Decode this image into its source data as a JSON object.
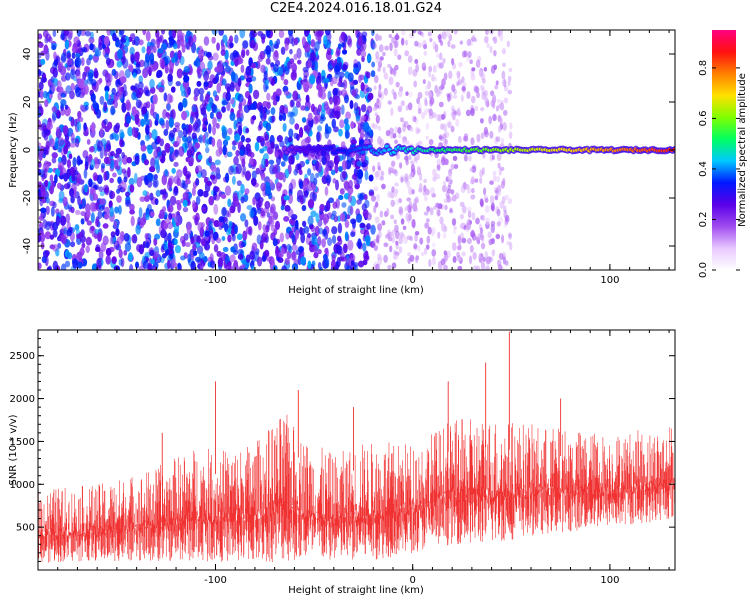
{
  "figure": {
    "title": "C2E4.2024.016.18.01.G24"
  },
  "chart_data": [
    {
      "type": "heatmap",
      "xlabel": "Height of straight line (km)",
      "ylabel": "Frequency (Hz)",
      "xlim": [
        -190,
        133
      ],
      "ylim": [
        -50,
        50
      ],
      "xticks": [
        -100,
        0,
        100
      ],
      "yticks": [
        -40,
        -20,
        0,
        20,
        40
      ],
      "colorbar": {
        "label": "Normalized spectral amplitude",
        "range": [
          0,
          0.95
        ],
        "ticks": [
          0.0,
          0.2,
          0.4,
          0.6,
          0.8
        ],
        "tick_labels": [
          "0.0",
          "0.2",
          "0.4",
          "0.6",
          "0.8"
        ],
        "colors": [
          "#ffffff",
          "#e8c8ff",
          "#a04cf0",
          "#5a00e8",
          "#0018ff",
          "#00c8ff",
          "#00ff60",
          "#80ff00",
          "#ffe000",
          "#ff8000",
          "#ff1010",
          "#ff0080"
        ]
      },
      "features": [
        {
          "description": "scattered low-amplitude blobs",
          "x_range": [
            -190,
            -20
          ],
          "freq_range": [
            -50,
            50
          ],
          "amplitude": 0.05
        },
        {
          "description": "sparse faint blobs",
          "x_range": [
            -20,
            50
          ],
          "freq_range": [
            -50,
            50
          ],
          "amplitude": 0.02
        },
        {
          "description": "signal line",
          "x_range": [
            -65,
            133
          ],
          "freq": 0,
          "amplitude_start": 0.2,
          "amplitude_end": 0.85
        }
      ]
    },
    {
      "type": "area",
      "xlabel": "Height of straight line (km)",
      "ylabel": "SNR (10 * v/v)",
      "xlim": [
        -190,
        133
      ],
      "ylim": [
        0,
        2800
      ],
      "xticks": [
        -100,
        0,
        100
      ],
      "yticks": [
        500,
        1000,
        1500,
        2000,
        2500
      ],
      "color": "#f03232",
      "series": [
        {
          "x": [
            -190,
            -160,
            -130,
            -110,
            -100,
            -80,
            -65,
            -55,
            -40,
            -25,
            -10,
            0,
            20,
            40,
            60,
            80,
            100,
            120,
            133
          ],
          "lower": [
            80,
            100,
            100,
            100,
            100,
            80,
            100,
            100,
            100,
            100,
            150,
            200,
            300,
            300,
            400,
            450,
            500,
            550,
            600
          ],
          "upper": [
            950,
            1000,
            1200,
            1450,
            1400,
            1500,
            1850,
            1550,
            1350,
            1500,
            1500,
            1500,
            1750,
            1800,
            1700,
            1650,
            1600,
            1650,
            1700
          ],
          "peaks": [
            {
              "x": 49,
              "y": 2780
            },
            {
              "x": 37,
              "y": 2420
            },
            {
              "x": -100,
              "y": 2200
            },
            {
              "x": -58,
              "y": 2100
            },
            {
              "x": 18,
              "y": 2200
            },
            {
              "x": -127,
              "y": 1600
            },
            {
              "x": -30,
              "y": 1900
            },
            {
              "x": 75,
              "y": 2000
            }
          ]
        }
      ]
    }
  ]
}
